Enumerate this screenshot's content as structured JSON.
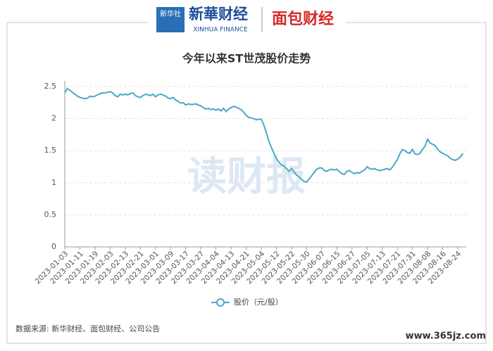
{
  "header": {
    "logo_badge": "新华社",
    "logo_name": "新華财经",
    "logo_sub": "XINHUA FINANCE",
    "partner": "面包财经"
  },
  "chart_data": {
    "type": "line",
    "title": "今年以来ST世茂股价走势",
    "categories": [
      "2023-01-03",
      null,
      null,
      null,
      null,
      null,
      "2023-01-11",
      null,
      null,
      null,
      null,
      null,
      "2023-01-19",
      null,
      null,
      null,
      null,
      null,
      "2023-02-03",
      null,
      null,
      null,
      null,
      null,
      "2023-02-13",
      null,
      null,
      null,
      null,
      null,
      "2023-02-21",
      null,
      null,
      null,
      null,
      null,
      "2023-03-01",
      null,
      null,
      null,
      null,
      null,
      "2023-03-09",
      null,
      null,
      null,
      null,
      null,
      "2023-03-17",
      null,
      null,
      null,
      null,
      null,
      "2023-03-27",
      null,
      null,
      null,
      null,
      null,
      "2023-04-04",
      null,
      null,
      null,
      null,
      null,
      "2023-04-13",
      null,
      null,
      null,
      null,
      null,
      "2023-04-21",
      null,
      null,
      null,
      null,
      null,
      "2023-05-04",
      null,
      null,
      null,
      null,
      null,
      "2023-05-12",
      null,
      null,
      null,
      null,
      null,
      "2023-05-22",
      null,
      null,
      null,
      null,
      null,
      "2023-05-30",
      null,
      null,
      null,
      null,
      null,
      "2023-06-07",
      null,
      null,
      null,
      null,
      null,
      "2023-06-15",
      null,
      null,
      null,
      null,
      null,
      "2023-06-27",
      null,
      null,
      null,
      null,
      null,
      "2023-07-05",
      null,
      null,
      null,
      null,
      null,
      "2023-07-13",
      null,
      null,
      null,
      null,
      null,
      "2023-07-21",
      null,
      null,
      null,
      null,
      null,
      "2023-07-31",
      null,
      null,
      null,
      null,
      null,
      "2023-08-08",
      null,
      null,
      null,
      null,
      null,
      "2023-08-16",
      null,
      null,
      null,
      null,
      null,
      "2023-08-24",
      null,
      null
    ],
    "series": [
      {
        "name": "股价（元/股）",
        "color": "#4ba8c8",
        "values": [
          2.4,
          2.47,
          2.44,
          2.41,
          2.38,
          2.35,
          2.33,
          2.32,
          2.31,
          2.32,
          2.35,
          2.34,
          2.35,
          2.37,
          2.39,
          2.4,
          2.4,
          2.41,
          2.42,
          2.4,
          2.36,
          2.34,
          2.38,
          2.37,
          2.38,
          2.37,
          2.39,
          2.4,
          2.36,
          2.34,
          2.33,
          2.36,
          2.38,
          2.37,
          2.36,
          2.38,
          2.34,
          2.37,
          2.38,
          2.37,
          2.35,
          2.32,
          2.31,
          2.33,
          2.29,
          2.27,
          2.24,
          2.25,
          2.21,
          2.23,
          2.22,
          2.22,
          2.23,
          2.21,
          2.2,
          2.17,
          2.15,
          2.16,
          2.14,
          2.15,
          2.13,
          2.15,
          2.12,
          2.16,
          2.11,
          2.15,
          2.17,
          2.19,
          2.18,
          2.16,
          2.14,
          2.1,
          2.05,
          2.02,
          2.01,
          2.0,
          1.98,
          1.99,
          1.99,
          1.9,
          1.78,
          1.65,
          1.55,
          1.46,
          1.38,
          1.32,
          1.28,
          1.26,
          1.22,
          1.18,
          1.22,
          1.17,
          1.12,
          1.09,
          1.05,
          1.02,
          1.01,
          1.06,
          1.11,
          1.16,
          1.21,
          1.23,
          1.23,
          1.19,
          1.18,
          1.2,
          1.21,
          1.2,
          1.21,
          1.17,
          1.14,
          1.13,
          1.18,
          1.19,
          1.16,
          1.14,
          1.16,
          1.15,
          1.18,
          1.2,
          1.25,
          1.22,
          1.21,
          1.22,
          1.2,
          1.19,
          1.2,
          1.21,
          1.22,
          1.2,
          1.24,
          1.3,
          1.36,
          1.45,
          1.52,
          1.5,
          1.47,
          1.46,
          1.52,
          1.45,
          1.44,
          1.46,
          1.52,
          1.57,
          1.68,
          1.62,
          1.6,
          1.58,
          1.52,
          1.48,
          1.46,
          1.44,
          1.42,
          1.38,
          1.36,
          1.35,
          1.37,
          1.4,
          1.46
        ]
      }
    ],
    "ylim": [
      0,
      2.5
    ],
    "yticks": [
      0,
      0.5,
      1,
      1.5,
      2,
      2.5
    ],
    "grid": true,
    "watermark": "读财报",
    "legend": "bottom"
  },
  "footer": {
    "source": "数据来源: 新华财经、面包财经、公司公告",
    "site": "www.365jz.com"
  }
}
